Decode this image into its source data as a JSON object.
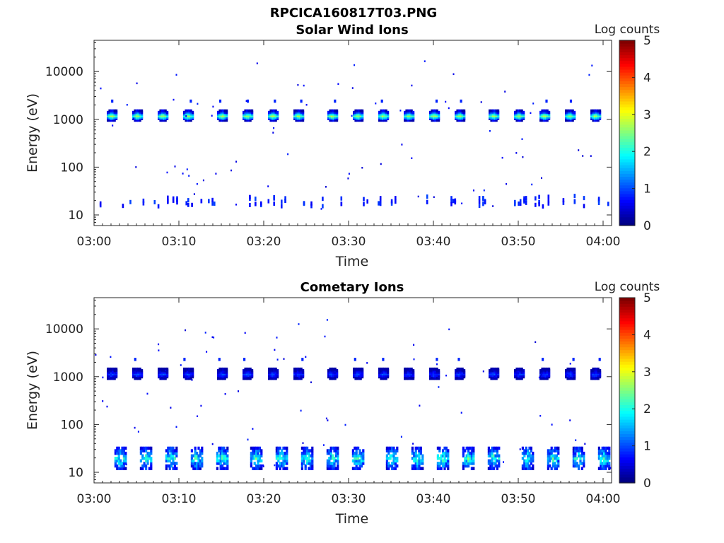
{
  "figure_title": "RPCICA160817T03.PNG",
  "chart_data": [
    {
      "type": "heatmap",
      "title": "Solar Wind Ions",
      "xlabel": "Time",
      "ylabel": "Energy (eV)",
      "y_scale": "log",
      "y_ticks": [
        10,
        100,
        1000,
        10000
      ],
      "y_tick_labels": [
        "10",
        "100",
        "1000",
        "10000"
      ],
      "x_tick_labels": [
        "03:00",
        "03:10",
        "03:20",
        "03:30",
        "03:40",
        "03:50",
        "04:00"
      ],
      "xlim": [
        "03:00",
        "04:01"
      ],
      "ylim": [
        6,
        45000
      ],
      "colorbar": {
        "label": "Log counts",
        "min": 0,
        "max": 5,
        "ticks": [
          "0",
          "1",
          "2",
          "3",
          "4",
          "5"
        ],
        "colormap": "jet"
      },
      "main_band": {
        "energy_center_eV": 1200,
        "peak_log_counts": 2.9,
        "times": [
          "03:02",
          "03:05",
          "03:08",
          "03:11",
          "03:15",
          "03:18",
          "03:21",
          "03:24",
          "03:28",
          "03:31",
          "03:34",
          "03:37",
          "03:40",
          "03:43",
          "03:47",
          "03:50",
          "03:53",
          "03:56",
          "03:59"
        ]
      },
      "low_energy_band": {
        "energy_range_eV": [
          8,
          30
        ],
        "peak_log_counts": 0.8
      }
    },
    {
      "type": "heatmap",
      "title": "Cometary Ions",
      "xlabel": "Time",
      "ylabel": "Energy (eV)",
      "y_scale": "log",
      "y_ticks": [
        10,
        100,
        1000,
        10000
      ],
      "y_tick_labels": [
        "10",
        "100",
        "1000",
        "10000"
      ],
      "x_tick_labels": [
        "03:00",
        "03:10",
        "03:20",
        "03:30",
        "03:40",
        "03:50",
        "04:00"
      ],
      "xlim": [
        "03:00",
        "04:01"
      ],
      "ylim": [
        6,
        45000
      ],
      "colorbar": {
        "label": "Log counts",
        "min": 0,
        "max": 5,
        "ticks": [
          "0",
          "1",
          "2",
          "3",
          "4",
          "5"
        ],
        "colormap": "jet"
      },
      "main_band": {
        "energy_center_eV": 1150,
        "peak_log_counts": 1.0,
        "times": [
          "03:02",
          "03:05",
          "03:08",
          "03:11",
          "03:15",
          "03:18",
          "03:21",
          "03:24",
          "03:28",
          "03:31",
          "03:34",
          "03:37",
          "03:40",
          "03:43",
          "03:47",
          "03:50",
          "03:53",
          "03:56",
          "03:59"
        ]
      },
      "low_energy_band": {
        "energy_range_eV": [
          12,
          32
        ],
        "peak_log_counts": 2.4,
        "burst_times": [
          "03:03",
          "03:06",
          "03:09",
          "03:12",
          "03:15",
          "03:19",
          "03:22",
          "03:25",
          "03:28",
          "03:31",
          "03:35",
          "03:38",
          "03:41",
          "03:44",
          "03:47",
          "03:51",
          "03:54",
          "03:57",
          "04:00"
        ]
      }
    }
  ]
}
